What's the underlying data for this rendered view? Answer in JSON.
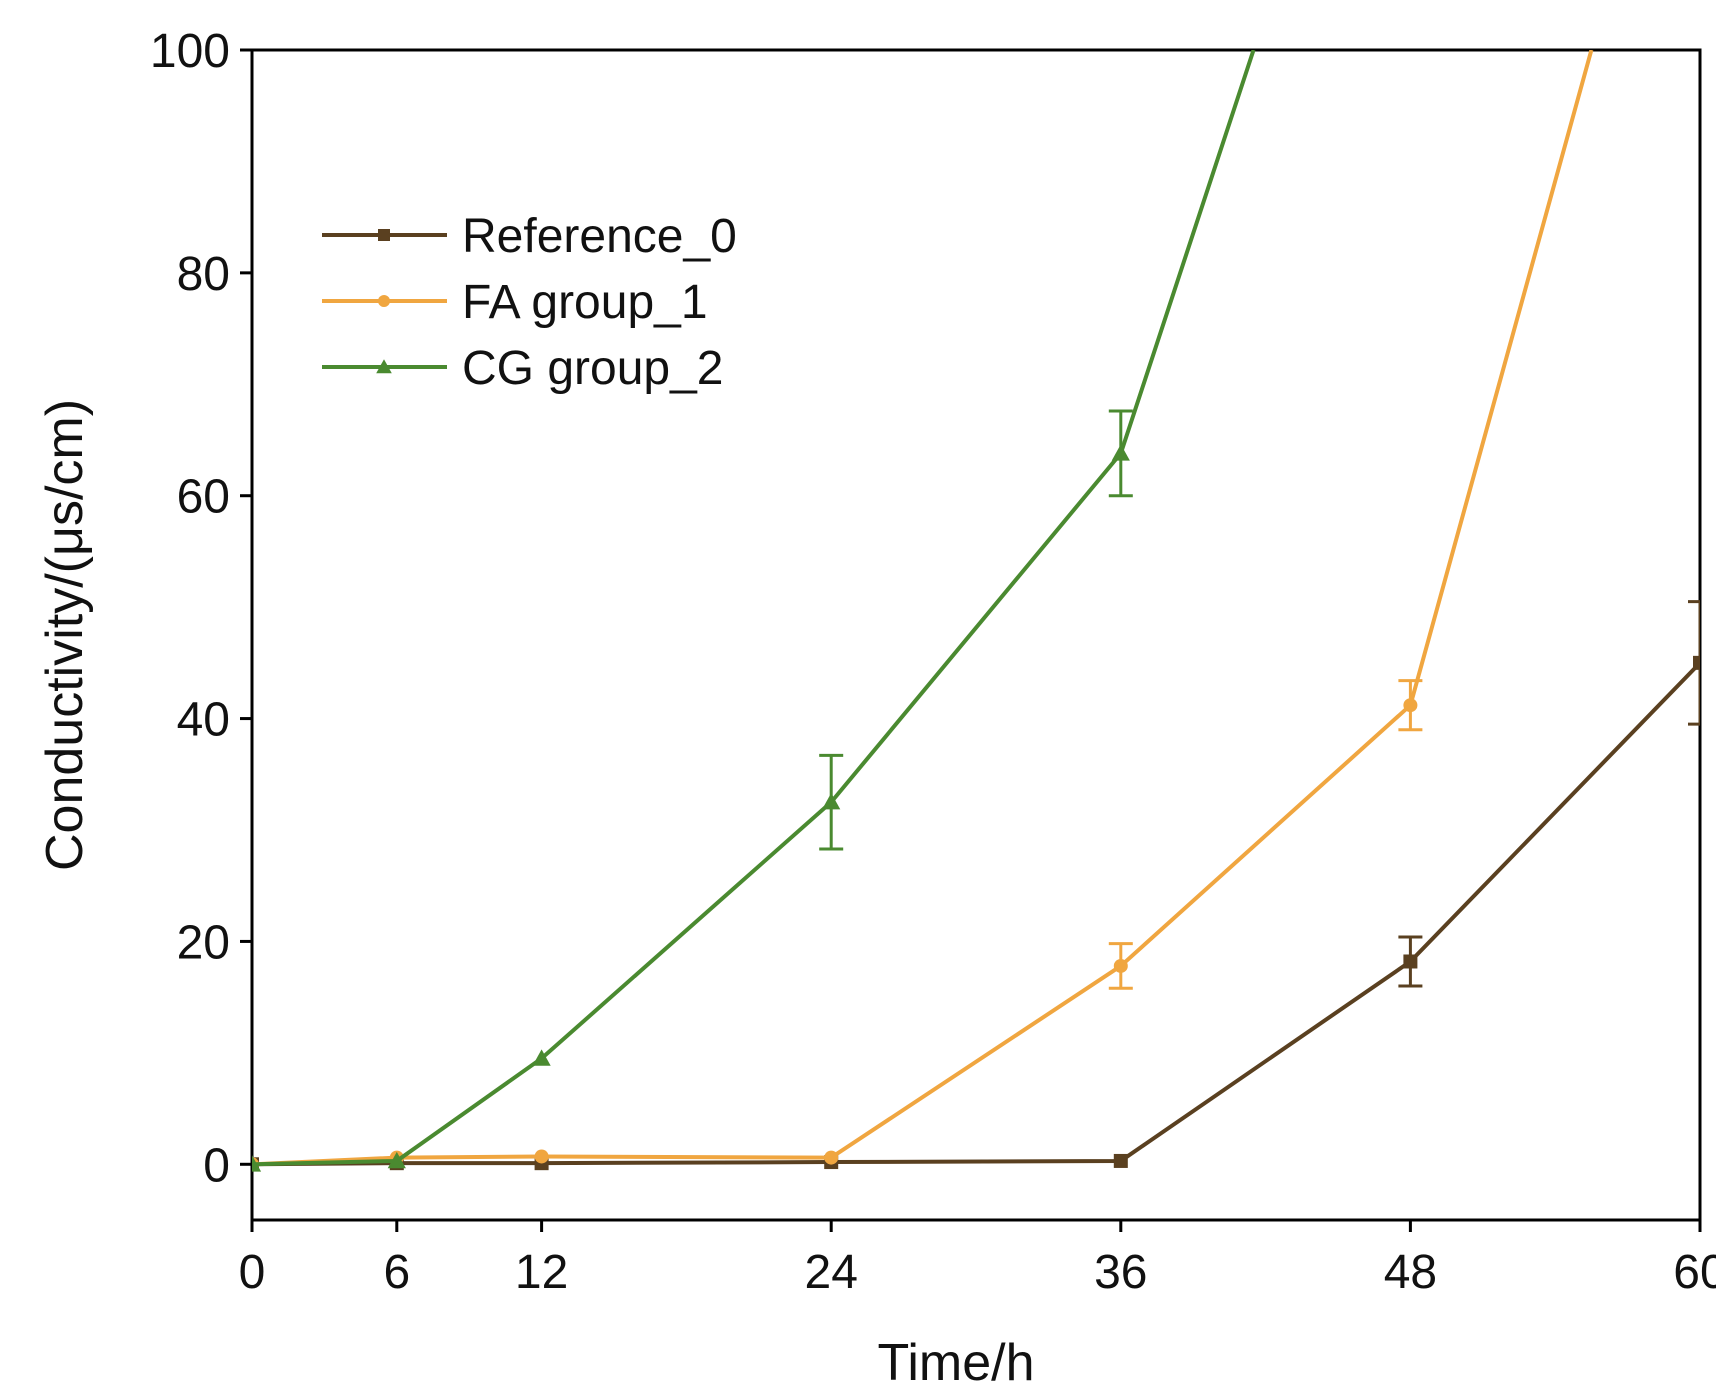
{
  "chart_data": {
    "type": "line",
    "title": "",
    "xlabel": "Time/h",
    "ylabel": "Conductivity/(μs/cm)",
    "xlim": [
      0,
      60
    ],
    "ylim": [
      -5,
      100
    ],
    "xticks": [
      0,
      6,
      12,
      24,
      36,
      48,
      60
    ],
    "yticks": [
      0,
      20,
      40,
      60,
      80,
      100
    ],
    "grid": false,
    "legend_position": "top-left",
    "series": [
      {
        "name": "Reference_0",
        "color": "#5a4020",
        "marker": "square",
        "x": [
          0,
          6,
          12,
          24,
          36,
          48,
          60
        ],
        "y": [
          0.0,
          0.1,
          0.1,
          0.2,
          0.3,
          18.2,
          45.0
        ],
        "err": [
          null,
          null,
          null,
          null,
          null,
          2.2,
          5.5
        ]
      },
      {
        "name": "FA group_1",
        "color": "#f0a640",
        "marker": "circle",
        "x": [
          0,
          6,
          12,
          24,
          36,
          48,
          55.5
        ],
        "y": [
          0.0,
          0.6,
          0.7,
          0.6,
          17.8,
          41.2,
          100
        ],
        "err": [
          null,
          null,
          null,
          null,
          2.0,
          2.2,
          null
        ]
      },
      {
        "name": "CG group_2",
        "color": "#4a8a30",
        "marker": "triangle",
        "x": [
          0,
          6,
          12,
          24,
          36,
          41.5
        ],
        "y": [
          0.0,
          0.3,
          9.5,
          32.5,
          63.8,
          100
        ],
        "err": [
          null,
          null,
          null,
          4.2,
          3.8,
          null
        ]
      }
    ]
  }
}
